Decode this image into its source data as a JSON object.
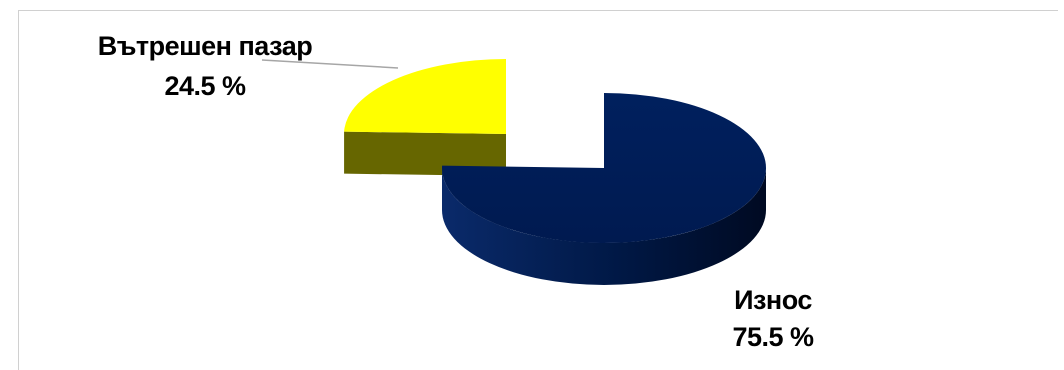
{
  "chart_data": {
    "type": "pie",
    "style": "3d-exploded",
    "slices": [
      {
        "label": "Вътрешен пазар",
        "value": 24.5,
        "value_text": "24.5 %",
        "color": "#ffff00",
        "side_color": "#666600"
      },
      {
        "label": "Износ",
        "value": 75.5,
        "value_text": "75.5 %",
        "color": "#001f5b",
        "side_color": "#00133a"
      }
    ],
    "legend": "none",
    "labels": "outside"
  }
}
